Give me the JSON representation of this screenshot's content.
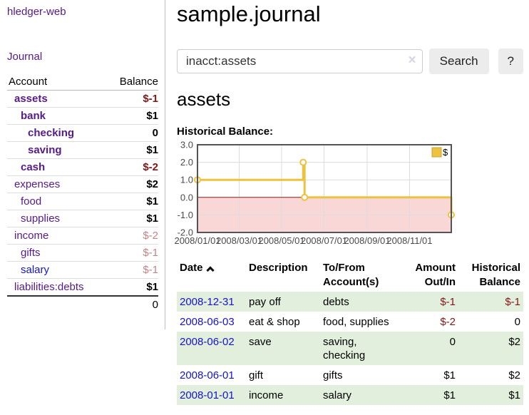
{
  "brand": "hledger-web",
  "sidebar": {
    "journal_link": "Journal",
    "accounts": {
      "header": {
        "account": "Account",
        "balance": "Balance"
      },
      "rows": [
        {
          "name": "assets",
          "balance": "$-1"
        },
        {
          "name": "bank",
          "balance": "$1"
        },
        {
          "name": "checking",
          "balance": "0"
        },
        {
          "name": "saving",
          "balance": "$1"
        },
        {
          "name": "cash",
          "balance": "$-2"
        },
        {
          "name": "expenses",
          "balance": "$2"
        },
        {
          "name": "food",
          "balance": "$1"
        },
        {
          "name": "supplies",
          "balance": "$1"
        },
        {
          "name": "income",
          "balance": "$-2"
        },
        {
          "name": "gifts",
          "balance": "$-1"
        },
        {
          "name": "salary",
          "balance": "$-1"
        },
        {
          "name": "liabilities:debts",
          "balance": "$1"
        }
      ],
      "total": "0"
    }
  },
  "main": {
    "title": "sample.journal",
    "search": {
      "value": "inacct:assets",
      "clear_icon": "×",
      "search_button": "Search",
      "help_button": "?"
    },
    "account_heading": "assets",
    "chart_title": "Historical Balance:"
  },
  "chart_data": {
    "type": "line",
    "step": true,
    "series": [
      {
        "name": "$",
        "color": "#edc240",
        "points": [
          [
            "2008-01-01",
            1
          ],
          [
            "2008-06-01",
            2
          ],
          [
            "2008-06-03",
            0
          ],
          [
            "2008-12-31",
            -1
          ]
        ]
      }
    ],
    "xlim": [
      "2008-01-01",
      "2008-12-31"
    ],
    "ylim": [
      -2,
      3
    ],
    "x_ticks": [
      "2008/01/01",
      "2008/03/01",
      "2008/05/01",
      "2008/07/01",
      "2008/09/01",
      "2008/11/01"
    ],
    "y_ticks": [
      "3.0",
      "2.0",
      "1.0",
      "0.0",
      "-1.0",
      "-2.0"
    ],
    "legend_position": "top-right",
    "grid": true,
    "grid_color": "#dcdcdc",
    "border_color": "#545454",
    "tick_color": "#4a4a4a",
    "zero_line_color": "#8b1a1a",
    "negative_region_color": "#f9d7d7",
    "marker": "open-circle"
  },
  "register": {
    "headers": {
      "date": "Date",
      "description": "Description",
      "accounts": "To/From Account(s)",
      "amount": "Amount Out/In",
      "balance": "Historical Balance"
    },
    "sort_icon": "chevron-up",
    "rows": [
      {
        "date": "2008-12-31",
        "description": "pay off",
        "accounts": "debts",
        "amount": "$-1",
        "balance": "$-1"
      },
      {
        "date": "2008-06-03",
        "description": "eat & shop",
        "accounts": "food, supplies",
        "amount": "$-2",
        "balance": "0"
      },
      {
        "date": "2008-06-02",
        "description": "save",
        "accounts": "saving, checking",
        "amount": "0",
        "balance": "$2"
      },
      {
        "date": "2008-06-01",
        "description": "gift",
        "accounts": "gifts",
        "amount": "$1",
        "balance": "$2"
      },
      {
        "date": "2008-01-01",
        "description": "income",
        "accounts": "salary",
        "amount": "$1",
        "balance": "$1"
      }
    ]
  },
  "colors": {
    "link_purple": "#551a8b",
    "link_blue": "#1414cc",
    "negative": "#801818",
    "negative_faded": "#c28484",
    "row_highlight_green": "#e3efdd",
    "series_yellow": "#edc240",
    "button_gray": "#ececec"
  }
}
